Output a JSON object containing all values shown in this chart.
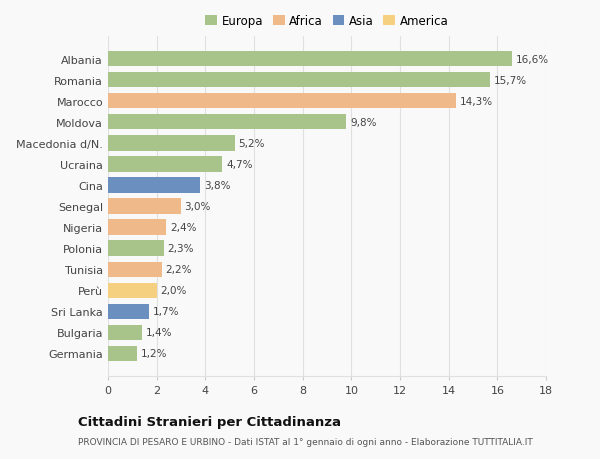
{
  "categories": [
    "Albania",
    "Romania",
    "Marocco",
    "Moldova",
    "Macedonia d/N.",
    "Ucraina",
    "Cina",
    "Senegal",
    "Nigeria",
    "Polonia",
    "Tunisia",
    "Perù",
    "Sri Lanka",
    "Bulgaria",
    "Germania"
  ],
  "values": [
    16.6,
    15.7,
    14.3,
    9.8,
    5.2,
    4.7,
    3.8,
    3.0,
    2.4,
    2.3,
    2.2,
    2.0,
    1.7,
    1.4,
    1.2
  ],
  "labels": [
    "16,6%",
    "15,7%",
    "14,3%",
    "9,8%",
    "5,2%",
    "4,7%",
    "3,8%",
    "3,0%",
    "2,4%",
    "2,3%",
    "2,2%",
    "2,0%",
    "1,7%",
    "1,4%",
    "1,2%"
  ],
  "colors": [
    "#a8c48a",
    "#a8c48a",
    "#f0b98a",
    "#a8c48a",
    "#a8c48a",
    "#a8c48a",
    "#6b8fbf",
    "#f0b98a",
    "#f0b98a",
    "#a8c48a",
    "#f0b98a",
    "#f5d080",
    "#6b8fbf",
    "#a8c48a",
    "#a8c48a"
  ],
  "legend_labels": [
    "Europa",
    "Africa",
    "Asia",
    "America"
  ],
  "legend_colors": [
    "#a8c48a",
    "#f0b98a",
    "#6b8fbf",
    "#f5d080"
  ],
  "title": "Cittadini Stranieri per Cittadinanza",
  "subtitle": "PROVINCIA DI PESARO E URBINO - Dati ISTAT al 1° gennaio di ogni anno - Elaborazione TUTTITALIA.IT",
  "xlim": [
    0,
    18
  ],
  "xticks": [
    0,
    2,
    4,
    6,
    8,
    10,
    12,
    14,
    16,
    18
  ],
  "bg_color": "#f9f9f9",
  "grid_color": "#e0e0e0"
}
